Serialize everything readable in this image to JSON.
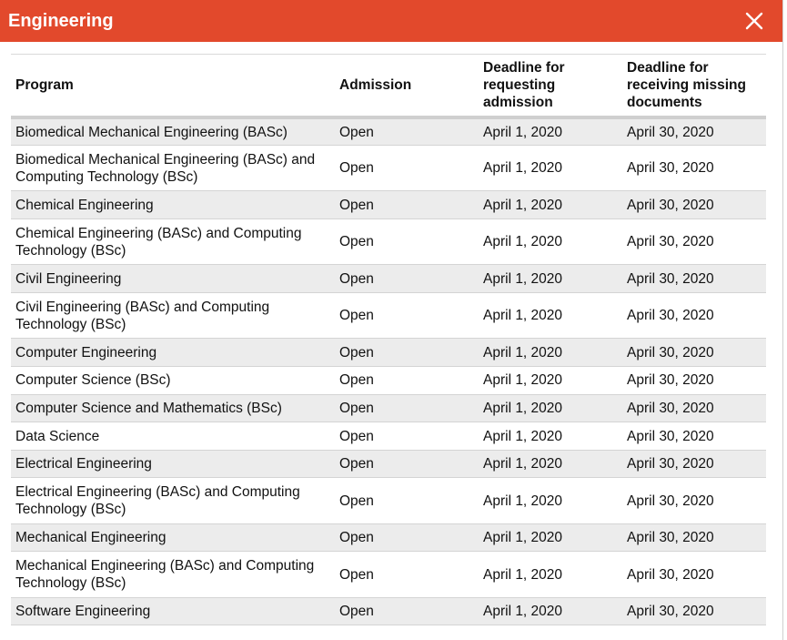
{
  "dialog": {
    "title": "Engineering",
    "close_icon": "close-icon",
    "colors": {
      "header_bg": "#e2492c",
      "header_text": "#ffffff",
      "row_alt": "#ececec"
    }
  },
  "table": {
    "headers": {
      "program": "Program",
      "admission": "Admission",
      "deadline_request": "Deadline for requesting admission",
      "deadline_documents": "Deadline for receiving missing documents"
    },
    "rows": [
      {
        "program": "Biomedical Mechanical Engineering (BASc)",
        "admission": "Open",
        "deadline_request": "April 1, 2020",
        "deadline_documents": "April 30, 2020"
      },
      {
        "program": "Biomedical Mechanical Engineering (BASc) and Computing Technology (BSc)",
        "admission": "Open",
        "deadline_request": "April 1, 2020",
        "deadline_documents": "April 30, 2020"
      },
      {
        "program": "Chemical Engineering",
        "admission": "Open",
        "deadline_request": "April 1, 2020",
        "deadline_documents": "April 30, 2020"
      },
      {
        "program": "Chemical Engineering (BASc) and Computing Technology (BSc)",
        "admission": "Open",
        "deadline_request": "April 1, 2020",
        "deadline_documents": "April 30, 2020"
      },
      {
        "program": "Civil Engineering",
        "admission": "Open",
        "deadline_request": "April 1, 2020",
        "deadline_documents": "April 30, 2020"
      },
      {
        "program": "Civil Engineering (BASc) and Computing Technology (BSc)",
        "admission": "Open",
        "deadline_request": "April 1, 2020",
        "deadline_documents": "April 30, 2020"
      },
      {
        "program": "Computer Engineering",
        "admission": "Open",
        "deadline_request": "April 1, 2020",
        "deadline_documents": "April 30, 2020"
      },
      {
        "program": "Computer Science (BSc)",
        "admission": "Open",
        "deadline_request": "April 1, 2020",
        "deadline_documents": "April 30, 2020"
      },
      {
        "program": "Computer Science and Mathematics (BSc)",
        "admission": "Open",
        "deadline_request": "April 1, 2020",
        "deadline_documents": "April 30, 2020"
      },
      {
        "program": "Data Science",
        "admission": "Open",
        "deadline_request": "April 1, 2020",
        "deadline_documents": "April 30, 2020"
      },
      {
        "program": "Electrical Engineering",
        "admission": "Open",
        "deadline_request": "April 1, 2020",
        "deadline_documents": "April 30, 2020"
      },
      {
        "program": "Electrical Engineering (BASc) and Computing Technology (BSc)",
        "admission": "Open",
        "deadline_request": "April 1, 2020",
        "deadline_documents": "April 30, 2020"
      },
      {
        "program": "Mechanical Engineering",
        "admission": "Open",
        "deadline_request": "April 1, 2020",
        "deadline_documents": "April 30, 2020"
      },
      {
        "program": "Mechanical Engineering (BASc) and Computing Technology (BSc)",
        "admission": "Open",
        "deadline_request": "April 1, 2020",
        "deadline_documents": "April 30, 2020"
      },
      {
        "program": "Software Engineering",
        "admission": "Open",
        "deadline_request": "April 1, 2020",
        "deadline_documents": "April 30, 2020"
      }
    ]
  }
}
